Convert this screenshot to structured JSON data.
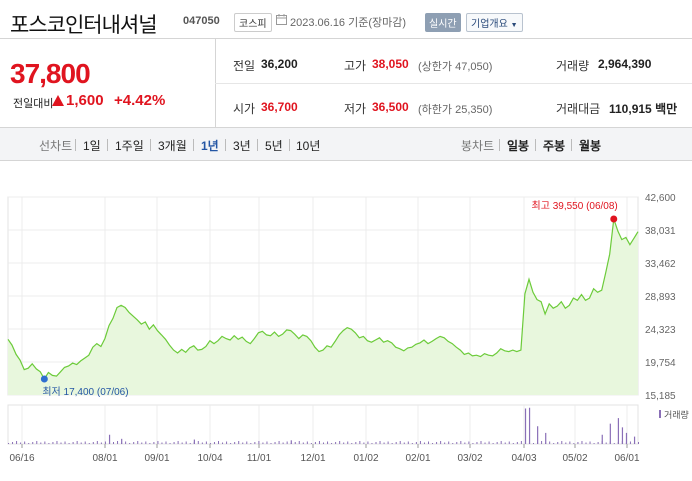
{
  "header": {
    "title": "포스코인터내셔널",
    "code": "047050",
    "market": "코스피",
    "date": "2023.06.16",
    "date_suffix": "기준(장마감)",
    "realtime_label": "실시간",
    "corp_info_label": "기업개요"
  },
  "price": {
    "current": "37,800",
    "change_label": "전일대비",
    "change_value": "1,600",
    "change_pct": "+4.42%",
    "direction": "up"
  },
  "summary": {
    "prev_label": "전일",
    "prev_value": "36,200",
    "high_label": "고가",
    "high_value": "38,050",
    "upper_limit": "(상한가 47,050)",
    "volume_label": "거래량",
    "volume_value": "2,964,390",
    "open_label": "시가",
    "open_value": "36,700",
    "low_label": "저가",
    "low_value": "36,500",
    "lower_limit": "(하한가 25,350)",
    "amount_label": "거래대금",
    "amount_value": "110,915",
    "amount_unit": "백만"
  },
  "period_tabs": {
    "head": "선차트",
    "items": [
      "1일",
      "1주일",
      "3개월",
      "1년",
      "3년",
      "5년",
      "10년"
    ],
    "selected": "1년"
  },
  "candle_tabs": {
    "head": "봉차트",
    "items": [
      "일봉",
      "주봉",
      "월봉"
    ]
  },
  "colors": {
    "up": "#e0141f",
    "line": "#6ccb3a",
    "fill": "#e8f7dd",
    "low_marker": "#2f6fd0"
  },
  "chart_data": {
    "type": "area",
    "y_ticks": [
      "42,600",
      "38,031",
      "33,462",
      "28,893",
      "24,323",
      "19,754",
      "15,185"
    ],
    "ylim": [
      15185,
      42600
    ],
    "x_labels": [
      "06/16",
      "08/01",
      "09/01",
      "10/04",
      "11/01",
      "12/01",
      "01/02",
      "02/01",
      "03/02",
      "04/03",
      "05/02",
      "06/01"
    ],
    "volume_label": "거래량",
    "high_annotation": "최고 39,550 (06/08)",
    "low_annotation": "최저 17,400 (07/06)",
    "high": 39550,
    "low": 17400,
    "values": [
      22900,
      22100,
      20800,
      20000,
      18700,
      18900,
      19500,
      18800,
      18400,
      17400,
      18300,
      17900,
      17800,
      18400,
      19000,
      19200,
      19600,
      19400,
      19900,
      20300,
      20700,
      21800,
      22300,
      21900,
      23000,
      24800,
      25800,
      27300,
      27600,
      27300,
      26600,
      26100,
      25600,
      25000,
      25300,
      24300,
      24900,
      24100,
      23500,
      22900,
      22100,
      21400,
      21000,
      21500,
      21100,
      21700,
      22000,
      21400,
      21500,
      21900,
      22700,
      22300,
      22700,
      23300,
      23000,
      22800,
      23400,
      22900,
      23200,
      22600,
      22300,
      23000,
      23800,
      24000,
      23500,
      23400,
      23900,
      23300,
      23600,
      24200,
      24100,
      23600,
      23000,
      23500,
      23300,
      22700,
      21800,
      21200,
      21400,
      22000,
      21800,
      22600,
      23500,
      24100,
      24500,
      24300,
      23800,
      23100,
      23300,
      22700,
      22500,
      22800,
      23100,
      22500,
      22700,
      22400,
      21800,
      21600,
      21300,
      21700,
      21800,
      22200,
      22400,
      22800,
      22300,
      22600,
      23000,
      23300,
      23100,
      22600,
      22300,
      21800,
      21400,
      20800,
      21000,
      20600,
      20700,
      20500,
      20900,
      20700,
      20600,
      21000,
      21600,
      21300,
      21200,
      21400,
      21200,
      21400,
      29200,
      31200,
      29400,
      28400,
      28100,
      26400,
      27800,
      27200,
      27500,
      28100,
      27200,
      27600,
      28600,
      28300,
      29100,
      28300,
      28600,
      29900,
      29400,
      29700,
      32100,
      34700,
      39550,
      37900,
      36700,
      37000,
      36000,
      36900,
      37800
    ],
    "volume_spikes": [
      {
        "i": 25,
        "v": 0.25
      },
      {
        "i": 28,
        "v": 0.14
      },
      {
        "i": 46,
        "v": 0.12
      },
      {
        "i": 70,
        "v": 0.1
      },
      {
        "i": 128,
        "v": 0.96
      },
      {
        "i": 129,
        "v": 0.98
      },
      {
        "i": 131,
        "v": 0.48
      },
      {
        "i": 133,
        "v": 0.3
      },
      {
        "i": 147,
        "v": 0.25
      },
      {
        "i": 149,
        "v": 0.55
      },
      {
        "i": 151,
        "v": 0.7
      },
      {
        "i": 152,
        "v": 0.45
      },
      {
        "i": 153,
        "v": 0.3
      },
      {
        "i": 155,
        "v": 0.2
      }
    ]
  }
}
